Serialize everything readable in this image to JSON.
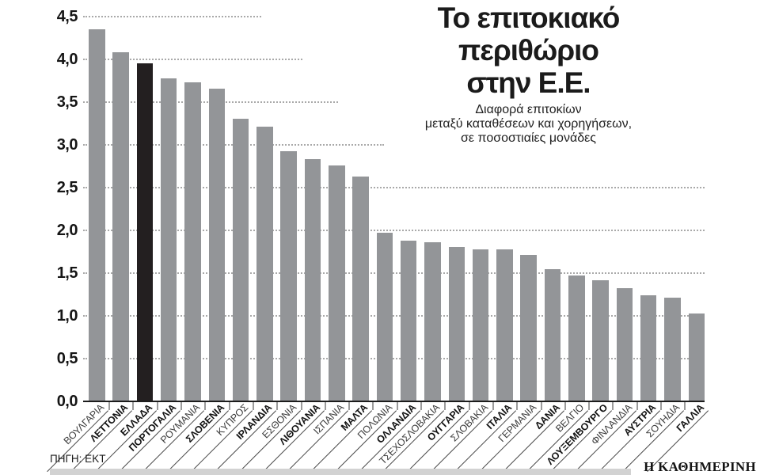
{
  "page": {
    "source": "ΠΗΓΗ: ΕΚΤ",
    "brand": "Η ΚΑΘΗΜΕΡΙΝΗ"
  },
  "chart_data": {
    "type": "bar",
    "title": "Το επιτοκιακό περιθώριο στην Ε.Ε.",
    "title_lines": [
      "Το επιτοκιακό",
      "περιθώριο",
      "στην Ε.Ε."
    ],
    "subtitle": "Διαφορά επιτοκίων μεταξύ καταθέσεων και χορηγήσεων, σε ποσοστιαίες μονάδες",
    "subtitle_lines": [
      "Διαφορά επιτοκίων",
      "μεταξύ καταθέσεων και χορηγήσεων,",
      "σε ποσοστιαίες μονάδες"
    ],
    "xlabel": "",
    "ylabel": "",
    "ylim": [
      0,
      4.5
    ],
    "ytick_step": 0.5,
    "ytick_labels": [
      "0,0",
      "0,5",
      "1,0",
      "1,5",
      "2,0",
      "2,5",
      "3,0",
      "3,5",
      "4,0",
      "4,5"
    ],
    "decimal_separator": ",",
    "grid": "horizontal-dotted",
    "legend": "none",
    "highlight_category": "ΕΛΛΑΔΑ",
    "categories": [
      "ΒΟΥΛΓΑΡΙΑ",
      "ΛΕΤΤΟΝΙΑ",
      "ΕΛΛΑΔΑ",
      "ΠΟΡΤΟΓΑΛΙΑ",
      "ΡΟΥΜΑΝΙΑ",
      "ΣΛΟΒΕΝΙΑ",
      "ΚΥΠΡΟΣ",
      "ΙΡΛΑΝΔΙΑ",
      "ΕΣΘΟΝΙΑ",
      "ΛΙΘΟΥΑΝΙΑ",
      "ΙΣΠΑΝΙΑ",
      "ΜΑΛΤΑ",
      "ΠΟΛΩΝΙΑ",
      "ΟΛΛΑΝΔΙΑ",
      "ΤΣΕΧΟΣΛΟΒΑΚΙΑ",
      "ΟΥΓΓΑΡΙΑ",
      "ΣΛΟΒΑΚΙΑ",
      "ΙΤΑΛΙΑ",
      "ΓΕΡΜΑΝΙΑ",
      "ΔΑΝΙΑ",
      "ΒΕΛΓΙΟ",
      "ΛΟΥΞΕΜΒΟΥΡΓΟ",
      "ΦΙΝΛΑΝΔΙΑ",
      "ΑΥΣΤΡΙΑ",
      "ΣΟΥΗΔΙΑ",
      "ΓΑΛΛΙΑ"
    ],
    "values": [
      4.35,
      4.08,
      3.95,
      3.78,
      3.73,
      3.66,
      3.31,
      3.21,
      2.93,
      2.83,
      2.76,
      2.63,
      1.97,
      1.88,
      1.86,
      1.81,
      1.78,
      1.78,
      1.71,
      1.55,
      1.47,
      1.42,
      1.32,
      1.24,
      1.21,
      1.03
    ],
    "bold_labels": [
      false,
      true,
      true,
      true,
      false,
      true,
      false,
      true,
      false,
      true,
      false,
      true,
      false,
      true,
      false,
      true,
      false,
      true,
      false,
      true,
      false,
      true,
      false,
      true,
      false,
      true
    ],
    "colors": {
      "bar": "#939598",
      "highlight": "#231f20",
      "grid": "#a9a9a9",
      "axis": "#1c1c1c",
      "tick": "#9b9b9b",
      "strip": "#d2d2d2",
      "text": "#1b1b1b"
    },
    "gridline_clip_right": {
      "3": 485,
      "3.5": 427,
      "4": 382,
      "4.5": 330,
      "default": 890
    }
  }
}
